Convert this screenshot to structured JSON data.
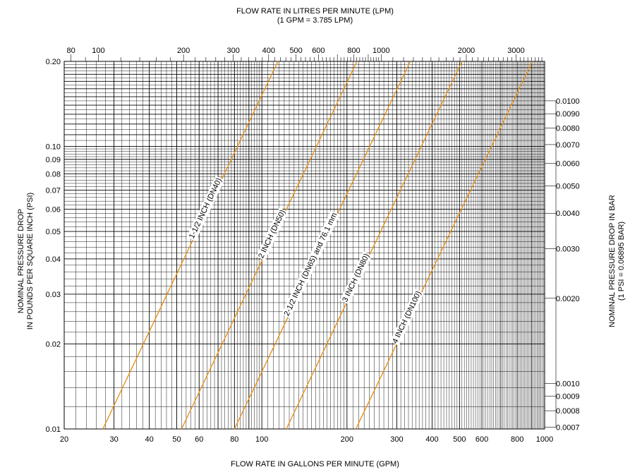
{
  "chart_data": {
    "type": "line",
    "title_top": [
      "FLOW RATE IN LITRES PER MINUTE (LPM)",
      "(1 GPM = 3.785 LPM)"
    ],
    "xlabel": "FLOW RATE IN GALLONS PER MINUTE (GPM)",
    "ylabel": [
      "NOMINAL PRESSURE DROP",
      "IN POUNDS PER SQUARE INCH (PSI)"
    ],
    "ylabel_right": [
      "NOMINAL PRESSURE DROP IN BAR",
      "(1 PSI = 0.06895 BAR)"
    ],
    "x_scale": "log",
    "y_scale": "log",
    "xlim": [
      20,
      1000
    ],
    "ylim": [
      0.01,
      0.2
    ],
    "grid": true,
    "x_ticks": [
      {
        "value": 20,
        "label": "20"
      },
      {
        "value": 30,
        "label": "30"
      },
      {
        "value": 40,
        "label": "40"
      },
      {
        "value": 50,
        "label": "50"
      },
      {
        "value": 60,
        "label": "60"
      },
      {
        "value": 80,
        "label": "80"
      },
      {
        "value": 100,
        "label": "100"
      },
      {
        "value": 200,
        "label": "200"
      },
      {
        "value": 300,
        "label": "300"
      },
      {
        "value": 400,
        "label": "400"
      },
      {
        "value": 500,
        "label": "500"
      },
      {
        "value": 600,
        "label": "600"
      },
      {
        "value": 800,
        "label": "800"
      },
      {
        "value": 1000,
        "label": "1000"
      }
    ],
    "x_top_ticks": [
      {
        "value": 80,
        "label": "80"
      },
      {
        "value": 100,
        "label": "100"
      },
      {
        "value": 200,
        "label": "200"
      },
      {
        "value": 300,
        "label": "300"
      },
      {
        "value": 400,
        "label": "400"
      },
      {
        "value": 500,
        "label": "500"
      },
      {
        "value": 600,
        "label": "600"
      },
      {
        "value": 800,
        "label": "800"
      },
      {
        "value": 1000,
        "label": "1000"
      },
      {
        "value": 2000,
        "label": "2000"
      },
      {
        "value": 3000,
        "label": "3000"
      }
    ],
    "y_ticks": [
      {
        "value": 0.01,
        "label": "0.01"
      },
      {
        "value": 0.02,
        "label": "0.02"
      },
      {
        "value": 0.03,
        "label": "0.03"
      },
      {
        "value": 0.04,
        "label": "0.04"
      },
      {
        "value": 0.05,
        "label": "0.05"
      },
      {
        "value": 0.06,
        "label": "0.06"
      },
      {
        "value": 0.07,
        "label": "0.07"
      },
      {
        "value": 0.08,
        "label": "0.08"
      },
      {
        "value": 0.09,
        "label": "0.09"
      },
      {
        "value": 0.1,
        "label": "0.10"
      },
      {
        "value": 0.2,
        "label": "0.20"
      }
    ],
    "y_right_ticks": [
      {
        "value": 0.0007,
        "label": "0.0007"
      },
      {
        "value": 0.0008,
        "label": "0.0008"
      },
      {
        "value": 0.0009,
        "label": "0.0009"
      },
      {
        "value": 0.001,
        "label": "0.0010"
      },
      {
        "value": 0.002,
        "label": "0.0020"
      },
      {
        "value": 0.003,
        "label": "0.0030"
      },
      {
        "value": 0.004,
        "label": "0.0040"
      },
      {
        "value": 0.005,
        "label": "0.0050"
      },
      {
        "value": 0.006,
        "label": "0.0060"
      },
      {
        "value": 0.007,
        "label": "0.0070"
      },
      {
        "value": 0.008,
        "label": "0.0080"
      },
      {
        "value": 0.009,
        "label": "0.0090"
      },
      {
        "value": 0.01,
        "label": "0.0100"
      }
    ],
    "series": [
      {
        "name": "1-1/2 INCH (DN40)",
        "x": [
          27.4,
          114
        ],
        "y": [
          0.01,
          0.2
        ]
      },
      {
        "name": "2 INCH (DN50)",
        "x": [
          52,
          217
        ],
        "y": [
          0.01,
          0.2
        ]
      },
      {
        "name": "2-1/2 INCH (DN65) and 76.1 mm",
        "x": [
          80,
          335
        ],
        "y": [
          0.01,
          0.2
        ]
      },
      {
        "name": "3 INCH (DN80)",
        "x": [
          122,
          510
        ],
        "y": [
          0.01,
          0.2
        ]
      },
      {
        "name": "4 INCH (DN100)",
        "x": [
          215,
          905
        ],
        "y": [
          0.01,
          0.2
        ]
      }
    ],
    "line_color": "#e8901c"
  }
}
